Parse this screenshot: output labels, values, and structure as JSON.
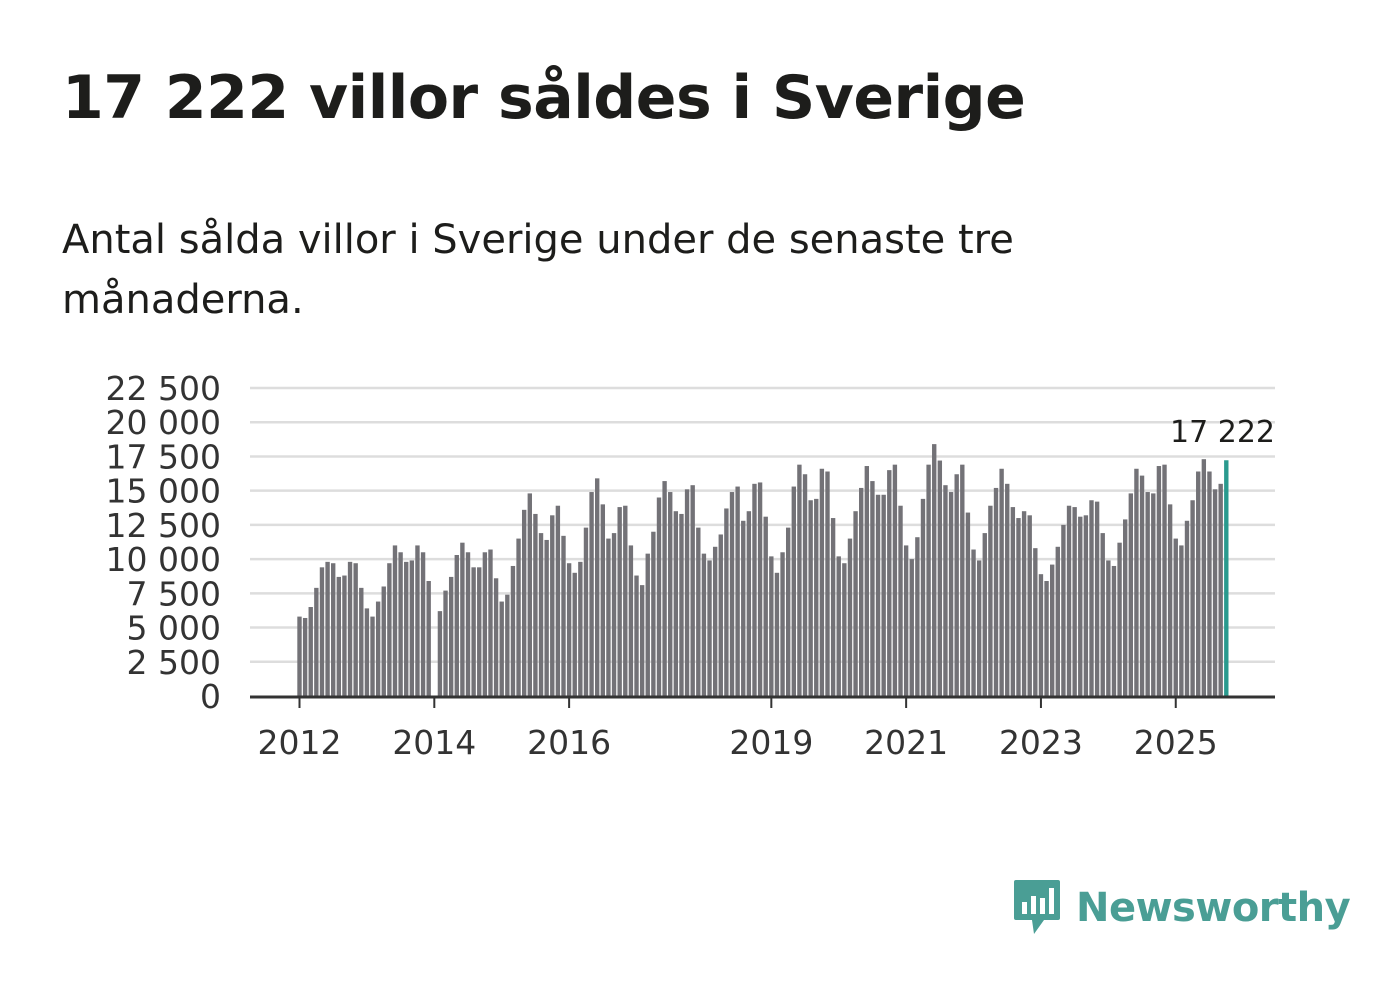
{
  "title": "17 222 villor såldes i Sverige",
  "subtitle": "Antal sålda villor i Sverige under de senaste tre månaderna.",
  "logo": {
    "text": "Newsworthy",
    "icon": "bar-chart-speech-bubble-icon"
  },
  "colors": {
    "bar": "#737277",
    "highlight": "#2a9a8e",
    "grid": "#dddddd",
    "axis": "#333333",
    "text": "#333333",
    "brand": "#4a9e95"
  },
  "chart_data": {
    "type": "bar",
    "title": "17 222 villor såldes i Sverige",
    "xlabel": "",
    "ylabel": "",
    "ylim": [
      0,
      22500
    ],
    "yticks": [
      0,
      2500,
      5000,
      7500,
      10000,
      12500,
      15000,
      17500,
      20000,
      22500
    ],
    "ytick_labels": [
      "0",
      "2 500",
      "5 000",
      "7 500",
      "10 000",
      "12 500",
      "15 000",
      "17 500",
      "20 000",
      "22 500"
    ],
    "xticks": [
      {
        "label": "2012",
        "index": 0
      },
      {
        "label": "2014",
        "index": 24
      },
      {
        "label": "2016",
        "index": 48
      },
      {
        "label": "2019",
        "index": 84
      },
      {
        "label": "2021",
        "index": 108
      },
      {
        "label": "2023",
        "index": 132
      },
      {
        "label": "2025",
        "index": 156
      }
    ],
    "first_period": "2012-01",
    "last_label": "17 222",
    "highlight_last": true,
    "values": [
      5800,
      5700,
      6500,
      7900,
      9400,
      9800,
      9700,
      8700,
      8800,
      9800,
      9700,
      7900,
      6400,
      5800,
      6900,
      8000,
      9700,
      11000,
      10500,
      9800,
      9900,
      11000,
      10500,
      8400,
      null,
      6200,
      7700,
      8700,
      10300,
      11200,
      10500,
      9400,
      9400,
      10500,
      10700,
      8600,
      6900,
      7400,
      9500,
      11500,
      13600,
      14800,
      13300,
      11900,
      11400,
      13200,
      13900,
      11700,
      9700,
      9000,
      9800,
      12300,
      14900,
      15900,
      14000,
      11500,
      11900,
      13800,
      13900,
      11000,
      8800,
      8100,
      10400,
      12000,
      14500,
      15700,
      14900,
      13500,
      13300,
      15100,
      15400,
      12300,
      10400,
      9900,
      10900,
      11800,
      13700,
      14900,
      15300,
      12800,
      13500,
      15500,
      15600,
      13100,
      10200,
      9000,
      10500,
      12300,
      15300,
      16900,
      16200,
      14300,
      14400,
      16600,
      16400,
      13000,
      10200,
      9700,
      11500,
      13500,
      15200,
      16800,
      15700,
      14700,
      14700,
      16500,
      16900,
      13900,
      11000,
      10000,
      11600,
      14400,
      16900,
      18400,
      17200,
      15400,
      14900,
      16200,
      16900,
      13400,
      10700,
      9900,
      11900,
      13900,
      15200,
      16600,
      15500,
      13800,
      13000,
      13500,
      13200,
      10800,
      8900,
      8400,
      9600,
      10900,
      12500,
      13900,
      13800,
      13100,
      13200,
      14300,
      14200,
      11900,
      9900,
      9500,
      11200,
      12900,
      14800,
      16600,
      16100,
      14900,
      14800,
      16800,
      16900,
      14000,
      11500,
      11000,
      12800,
      14300,
      16400,
      17300,
      16400,
      15100,
      15500,
      17222
    ]
  }
}
